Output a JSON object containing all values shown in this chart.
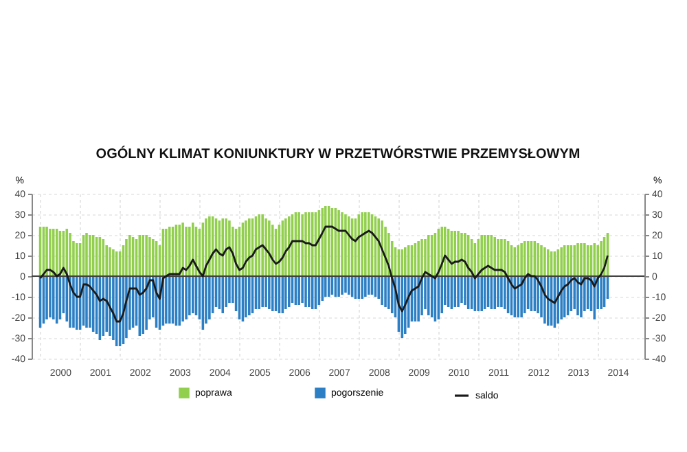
{
  "chart_data": {
    "type": "bar",
    "title": "OGÓLNY KLIMAT KONIUNKTURY W PRZETWÓRSTWIE PRZEMYSŁOWYM",
    "ylabel": "%",
    "y2label": "%",
    "grid": true,
    "legend": "bottom",
    "x": [
      "2000-01",
      "2000-02",
      "2000-03",
      "2000-04",
      "2000-05",
      "2000-06",
      "2000-07",
      "2000-08",
      "2000-09",
      "2000-10",
      "2000-11",
      "2000-12",
      "2001-01",
      "2001-02",
      "2001-03",
      "2001-04",
      "2001-05",
      "2001-06",
      "2001-07",
      "2001-08",
      "2001-09",
      "2001-10",
      "2001-11",
      "2001-12",
      "2002-01",
      "2002-02",
      "2002-03",
      "2002-04",
      "2002-05",
      "2002-06",
      "2002-07",
      "2002-08",
      "2002-09",
      "2002-10",
      "2002-11",
      "2002-12",
      "2003-01",
      "2003-02",
      "2003-03",
      "2003-04",
      "2003-05",
      "2003-06",
      "2003-07",
      "2003-08",
      "2003-09",
      "2003-10",
      "2003-11",
      "2003-12",
      "2004-01",
      "2004-02",
      "2004-03",
      "2004-04",
      "2004-05",
      "2004-06",
      "2004-07",
      "2004-08",
      "2004-09",
      "2004-10",
      "2004-11",
      "2004-12",
      "2005-01",
      "2005-02",
      "2005-03",
      "2005-04",
      "2005-05",
      "2005-06",
      "2005-07",
      "2005-08",
      "2005-09",
      "2005-10",
      "2005-11",
      "2005-12",
      "2006-01",
      "2006-02",
      "2006-03",
      "2006-04",
      "2006-05",
      "2006-06",
      "2006-07",
      "2006-08",
      "2006-09",
      "2006-10",
      "2006-11",
      "2006-12",
      "2007-01",
      "2007-02",
      "2007-03",
      "2007-04",
      "2007-05",
      "2007-06",
      "2007-07",
      "2007-08",
      "2007-09",
      "2007-10",
      "2007-11",
      "2007-12",
      "2008-01",
      "2008-02",
      "2008-03",
      "2008-04",
      "2008-05",
      "2008-06",
      "2008-07",
      "2008-08",
      "2008-09",
      "2008-10",
      "2008-11",
      "2008-12",
      "2009-01",
      "2009-02",
      "2009-03",
      "2009-04",
      "2009-05",
      "2009-06",
      "2009-07",
      "2009-08",
      "2009-09",
      "2009-10",
      "2009-11",
      "2009-12",
      "2010-01",
      "2010-02",
      "2010-03",
      "2010-04",
      "2010-05",
      "2010-06",
      "2010-07",
      "2010-08",
      "2010-09",
      "2010-10",
      "2010-11",
      "2010-12",
      "2011-01",
      "2011-02",
      "2011-03",
      "2011-04",
      "2011-05",
      "2011-06",
      "2011-07",
      "2011-08",
      "2011-09",
      "2011-10",
      "2011-11",
      "2011-12",
      "2012-01",
      "2012-02",
      "2012-03",
      "2012-04",
      "2012-05",
      "2012-06",
      "2012-07",
      "2012-08",
      "2012-09",
      "2012-10",
      "2012-11",
      "2012-12",
      "2013-01",
      "2013-02",
      "2013-03",
      "2013-04",
      "2013-05",
      "2013-06",
      "2013-07",
      "2013-08",
      "2013-09",
      "2013-10",
      "2013-11",
      "2013-12",
      "2014-01",
      "2014-02",
      "2014-03",
      "2014-04"
    ],
    "xlim": [
      "1999-12-16",
      "2014-12-31"
    ],
    "xticks": [
      {
        "value": "2000-01",
        "label": null
      },
      {
        "value": "2000-07",
        "label": "2000"
      },
      {
        "value": "2001-01",
        "label": null
      },
      {
        "value": "2001-07",
        "label": "2001"
      },
      {
        "value": "2002-01",
        "label": null
      },
      {
        "value": "2002-07",
        "label": "2002"
      },
      {
        "value": "2003-01",
        "label": null
      },
      {
        "value": "2003-07",
        "label": "2003"
      },
      {
        "value": "2004-01",
        "label": null
      },
      {
        "value": "2004-07",
        "label": "2004"
      },
      {
        "value": "2005-01",
        "label": null
      },
      {
        "value": "2005-07",
        "label": "2005"
      },
      {
        "value": "2006-01",
        "label": null
      },
      {
        "value": "2006-07",
        "label": "2006"
      },
      {
        "value": "2007-01",
        "label": null
      },
      {
        "value": "2007-07",
        "label": "2007"
      },
      {
        "value": "2008-01",
        "label": null
      },
      {
        "value": "2008-07",
        "label": "2008"
      },
      {
        "value": "2009-01",
        "label": null
      },
      {
        "value": "2009-07",
        "label": "2009"
      },
      {
        "value": "2010-01",
        "label": null
      },
      {
        "value": "2010-07",
        "label": "2010"
      },
      {
        "value": "2011-01",
        "label": null
      },
      {
        "value": "2011-07",
        "label": "2011"
      },
      {
        "value": "2012-01",
        "label": null
      },
      {
        "value": "2012-07",
        "label": "2012"
      },
      {
        "value": "2013-01",
        "label": null
      },
      {
        "value": "2013-07",
        "label": "2013"
      },
      {
        "value": "2014-01",
        "label": null
      },
      {
        "value": "2014-07",
        "label": "2014"
      }
    ],
    "ylim": [
      -40,
      40
    ],
    "yticks": [
      -40,
      -30,
      -20,
      -10,
      0,
      10,
      20,
      30,
      40
    ],
    "y2lim": [
      -40,
      40
    ],
    "y2ticks": [
      -40,
      -30,
      -20,
      -10,
      0,
      10,
      20,
      30,
      40
    ],
    "ref_lines": [
      {
        "axis": "y",
        "value": 0,
        "color": "#404040"
      }
    ],
    "series": [
      {
        "name": "poprawa",
        "type": "bar",
        "color": "#92cf4f",
        "values": [
          24,
          24,
          24,
          23,
          23,
          23,
          22,
          22,
          23,
          21,
          17,
          16,
          16,
          20,
          21,
          20,
          20,
          19,
          19,
          18,
          15,
          14,
          13,
          12,
          12,
          15,
          18,
          20,
          19,
          18,
          20,
          20,
          20,
          19,
          18,
          17,
          15,
          23,
          23,
          24,
          24,
          25,
          25,
          26,
          24,
          24,
          26,
          24,
          23,
          26,
          28,
          29,
          29,
          28,
          27,
          28,
          28,
          27,
          24,
          23,
          24,
          26,
          27,
          28,
          28,
          29,
          30,
          30,
          28,
          27,
          25,
          23,
          25,
          27,
          28,
          29,
          30,
          31,
          31,
          30,
          31,
          31,
          31,
          31,
          32,
          33,
          34,
          34,
          33,
          33,
          32,
          31,
          30,
          29,
          28,
          28,
          30,
          31,
          31,
          31,
          30,
          29,
          28,
          27,
          24,
          21,
          17,
          14,
          13,
          13,
          14,
          15,
          15,
          16,
          17,
          18,
          18,
          20,
          20,
          21,
          23,
          24,
          24,
          23,
          22,
          22,
          22,
          21,
          21,
          20,
          18,
          16,
          18,
          20,
          20,
          20,
          20,
          19,
          18,
          18,
          18,
          17,
          15,
          14,
          15,
          16,
          17,
          17,
          17,
          17,
          16,
          15,
          14,
          13,
          12,
          12,
          13,
          14,
          15,
          15,
          15,
          15,
          16,
          16,
          16,
          15,
          15,
          16,
          15,
          17,
          19,
          21
        ]
      },
      {
        "name": "pogorszenie",
        "type": "bar",
        "color": "#2c7fc4",
        "values": [
          -25,
          -23,
          -21,
          -20,
          -21,
          -23,
          -21,
          -18,
          -22,
          -25,
          -25,
          -26,
          -26,
          -24,
          -25,
          -25,
          -27,
          -28,
          -31,
          -29,
          -27,
          -29,
          -31,
          -34,
          -34,
          -33,
          -30,
          -26,
          -25,
          -24,
          -29,
          -28,
          -26,
          -21,
          -20,
          -25,
          -26,
          -24,
          -23,
          -23,
          -23,
          -24,
          -24,
          -22,
          -21,
          -19,
          -18,
          -19,
          -21,
          -26,
          -23,
          -21,
          -18,
          -15,
          -16,
          -18,
          -15,
          -13,
          -13,
          -17,
          -21,
          -22,
          -20,
          -19,
          -18,
          -16,
          -16,
          -15,
          -15,
          -16,
          -17,
          -17,
          -18,
          -18,
          -16,
          -15,
          -13,
          -14,
          -14,
          -13,
          -15,
          -15,
          -16,
          -16,
          -14,
          -12,
          -10,
          -10,
          -9,
          -10,
          -10,
          -9,
          -8,
          -9,
          -10,
          -11,
          -11,
          -11,
          -10,
          -9,
          -9,
          -10,
          -11,
          -14,
          -15,
          -16,
          -18,
          -20,
          -27,
          -30,
          -28,
          -25,
          -22,
          -22,
          -22,
          -19,
          -16,
          -19,
          -20,
          -22,
          -21,
          -18,
          -14,
          -15,
          -16,
          -15,
          -15,
          -13,
          -14,
          -16,
          -16,
          -17,
          -17,
          -17,
          -16,
          -15,
          -16,
          -16,
          -15,
          -15,
          -16,
          -18,
          -19,
          -20,
          -20,
          -20,
          -18,
          -16,
          -17,
          -17,
          -18,
          -20,
          -23,
          -24,
          -24,
          -25,
          -23,
          -21,
          -20,
          -19,
          -17,
          -16,
          -19,
          -20,
          -17,
          -16,
          -17,
          -21,
          -16,
          -16,
          -15,
          -11
        ]
      },
      {
        "name": "saldo",
        "type": "line",
        "color": "#1a1a1a",
        "values": [
          -1,
          1,
          3,
          3,
          2,
          0,
          1,
          4,
          1,
          -4,
          -8,
          -10,
          -10,
          -4,
          -4,
          -5,
          -7,
          -9,
          -12,
          -11,
          -12,
          -15,
          -18,
          -22,
          -22,
          -18,
          -12,
          -6,
          -6,
          -6,
          -9,
          -8,
          -6,
          -2,
          -2,
          -8,
          -11,
          -1,
          0,
          1,
          1,
          1,
          1,
          4,
          3,
          5,
          8,
          5,
          2,
          0,
          5,
          8,
          11,
          13,
          11,
          10,
          13,
          14,
          11,
          6,
          3,
          4,
          7,
          9,
          10,
          13,
          14,
          15,
          13,
          11,
          8,
          6,
          7,
          9,
          12,
          14,
          17,
          17,
          17,
          17,
          16,
          16,
          15,
          15,
          18,
          21,
          24,
          24,
          24,
          23,
          22,
          22,
          22,
          20,
          18,
          17,
          19,
          20,
          21,
          22,
          21,
          19,
          17,
          13,
          9,
          5,
          -1,
          -6,
          -14,
          -17,
          -14,
          -10,
          -7,
          -6,
          -5,
          -1,
          2,
          1,
          0,
          -1,
          2,
          6,
          10,
          8,
          6,
          7,
          7,
          8,
          7,
          4,
          2,
          -1,
          1,
          3,
          4,
          5,
          4,
          3,
          3,
          3,
          2,
          -1,
          -4,
          -6,
          -5,
          -4,
          -1,
          1,
          0,
          0,
          -2,
          -5,
          -9,
          -11,
          -12,
          -13,
          -10,
          -7,
          -5,
          -4,
          -2,
          -1,
          -3,
          -4,
          -1,
          -1,
          -2,
          -5,
          -1,
          1,
          4,
          10
        ]
      }
    ]
  }
}
